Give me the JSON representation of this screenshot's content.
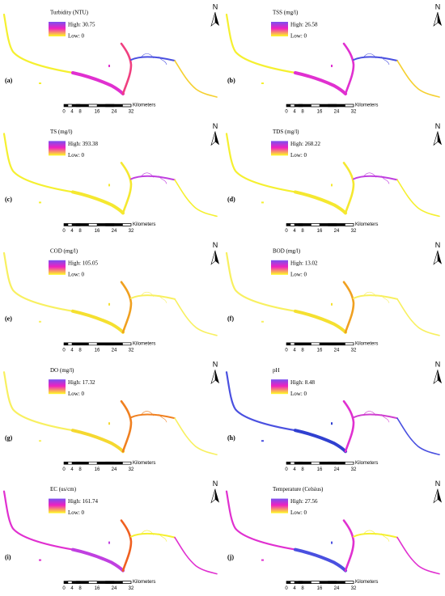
{
  "panels": [
    {
      "label": "(a)",
      "title": "Turbidity (NTU)",
      "high": "High: 30.75",
      "low": "Low: 0",
      "colors": [
        "#f5f030",
        "#e030d0",
        "#f04080",
        "#4a50e0",
        "#f5d030"
      ]
    },
    {
      "label": "(b)",
      "title": "TSS (mg/l)",
      "high": "High: 26.58",
      "low": "Low: 0",
      "colors": [
        "#f5f030",
        "#e030d0",
        "#e030d0",
        "#4a50e0",
        "#f5d030"
      ]
    },
    {
      "label": "(c)",
      "title": "TS (mg/l)",
      "high": "High: 393.38",
      "low": "Low: 0",
      "colors": [
        "#f5f030",
        "#f5e830",
        "#f5e830",
        "#c040e0",
        "#f5f030"
      ]
    },
    {
      "label": "(d)",
      "title": "TDS (mg/l)",
      "high": "High: 268.22",
      "low": "Low: 0",
      "colors": [
        "#f5f030",
        "#f5e830",
        "#f5e830",
        "#c040e0",
        "#f5f030"
      ]
    },
    {
      "label": "(e)",
      "title": "COD (mg/l)",
      "high": "High: 105.05",
      "low": "Low: 0",
      "colors": [
        "#f8f060",
        "#f5e030",
        "#f0a020",
        "#f8f060",
        "#f8f060"
      ]
    },
    {
      "label": "(f)",
      "title": "BOD (mg/l)",
      "high": "High: 13.02",
      "low": "Low: 0",
      "colors": [
        "#f8f060",
        "#f5e030",
        "#f0a020",
        "#f8f060",
        "#f8f060"
      ]
    },
    {
      "label": "(g)",
      "title": "DO (mg/l)",
      "high": "High: 17.32",
      "low": "Low: 0",
      "colors": [
        "#f8f060",
        "#f5d830",
        "#f08020",
        "#f08020",
        "#f8f060"
      ]
    },
    {
      "label": "(h)",
      "title": "pH",
      "high": "High: 8.48",
      "low": "Low: 0",
      "colors": [
        "#4a50e0",
        "#3040d0",
        "#e030d0",
        "#d040d0",
        "#4a50e0"
      ]
    },
    {
      "label": "(i)",
      "title": "EC (us/cm)",
      "high": "High: 161.74",
      "low": "Low: 0",
      "colors": [
        "#e030d0",
        "#c040e0",
        "#f06020",
        "#f5f030",
        "#e030d0"
      ]
    },
    {
      "label": "(j)",
      "title": "Temperature (Celsius)",
      "high": "High: 27.56",
      "low": "Low: 0",
      "colors": [
        "#e030d0",
        "#4a50e0",
        "#e030d0",
        "#f5f030",
        "#e030d0"
      ]
    }
  ],
  "scale_bar": {
    "ticks": [
      "0",
      "4",
      "8",
      "16",
      "24",
      "32"
    ],
    "unit": "Kilometers"
  },
  "north": "N"
}
